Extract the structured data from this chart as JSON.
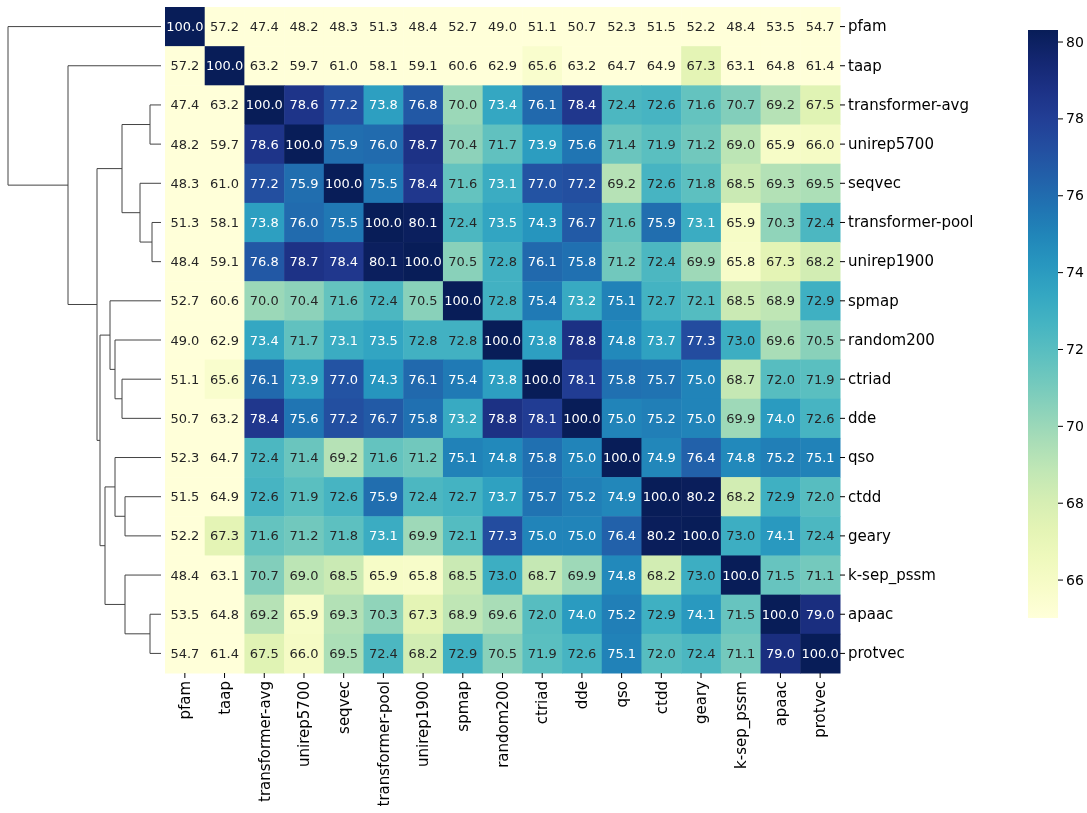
{
  "chart_data": {
    "type": "heatmap",
    "categories": [
      "pfam",
      "taap",
      "transformer-avg",
      "unirep5700",
      "seqvec",
      "transformer-pool",
      "unirep1900",
      "spmap",
      "random200",
      "ctriad",
      "dde",
      "qso",
      "ctdd",
      "geary",
      "k-sep_pssm",
      "apaac",
      "protvec"
    ],
    "y_categories": [
      "pfam",
      "taap",
      "transformer-avg",
      "unirep5700",
      "seqvec",
      "transformer-pool",
      "unirep1900",
      "spmap",
      "random200",
      "ctriad",
      "dde",
      "qso",
      "ctdd",
      "geary",
      "k-sep_pssm",
      "apaac",
      "protvec"
    ],
    "cells": [
      [
        100.0,
        57.2,
        47.4,
        48.2,
        48.3,
        51.3,
        48.4,
        52.7,
        49.0,
        51.1,
        50.7,
        52.3,
        51.5,
        52.2,
        48.4,
        53.5,
        54.7
      ],
      [
        57.2,
        100.0,
        63.2,
        59.7,
        61.0,
        58.1,
        59.1,
        60.6,
        62.9,
        65.6,
        63.2,
        64.7,
        64.9,
        67.3,
        63.1,
        64.8,
        61.4
      ],
      [
        47.4,
        63.2,
        100.0,
        78.6,
        77.2,
        73.8,
        76.8,
        70.0,
        73.4,
        76.1,
        78.4,
        72.4,
        72.6,
        71.6,
        70.7,
        69.2,
        67.5
      ],
      [
        48.2,
        59.7,
        78.6,
        100.0,
        75.9,
        76.0,
        78.7,
        70.4,
        71.7,
        73.9,
        75.6,
        71.4,
        71.9,
        71.2,
        69.0,
        65.9,
        66.0
      ],
      [
        48.3,
        61.0,
        77.2,
        75.9,
        100.0,
        75.5,
        78.4,
        71.6,
        73.1,
        77.0,
        77.2,
        69.2,
        72.6,
        71.8,
        68.5,
        69.3,
        69.5
      ],
      [
        51.3,
        58.1,
        73.8,
        76.0,
        75.5,
        100.0,
        80.1,
        72.4,
        73.5,
        74.3,
        76.7,
        71.6,
        75.9,
        73.1,
        65.9,
        70.3,
        72.4
      ],
      [
        48.4,
        59.1,
        76.8,
        78.7,
        78.4,
        80.1,
        100.0,
        70.5,
        72.8,
        76.1,
        75.8,
        71.2,
        72.4,
        69.9,
        65.8,
        67.3,
        68.2
      ],
      [
        52.7,
        60.6,
        70.0,
        70.4,
        71.6,
        72.4,
        70.5,
        100.0,
        72.8,
        75.4,
        73.2,
        75.1,
        72.7,
        72.1,
        68.5,
        68.9,
        72.9
      ],
      [
        49.0,
        62.9,
        73.4,
        71.7,
        73.1,
        73.5,
        72.8,
        72.8,
        100.0,
        73.8,
        78.8,
        74.8,
        73.7,
        77.3,
        73.0,
        69.6,
        70.5
      ],
      [
        51.1,
        65.6,
        76.1,
        73.9,
        77.0,
        74.3,
        76.1,
        75.4,
        73.8,
        100.0,
        78.1,
        75.8,
        75.7,
        75.0,
        68.7,
        72.0,
        71.9
      ],
      [
        50.7,
        63.2,
        78.4,
        75.6,
        77.2,
        76.7,
        75.8,
        73.2,
        78.8,
        78.1,
        100.0,
        75.0,
        75.2,
        75.0,
        69.9,
        74.0,
        72.6
      ],
      [
        52.3,
        64.7,
        72.4,
        71.4,
        69.2,
        71.6,
        71.2,
        75.1,
        74.8,
        75.8,
        75.0,
        100.0,
        74.9,
        76.4,
        74.8,
        75.2,
        75.1
      ],
      [
        51.5,
        64.9,
        72.6,
        71.9,
        72.6,
        75.9,
        72.4,
        72.7,
        73.7,
        75.7,
        75.2,
        74.9,
        100.0,
        80.2,
        68.2,
        72.9,
        72.0
      ],
      [
        52.2,
        67.3,
        71.6,
        71.2,
        71.8,
        73.1,
        69.9,
        72.1,
        77.3,
        75.0,
        75.0,
        76.4,
        80.2,
        100.0,
        73.0,
        74.1,
        72.4
      ],
      [
        48.4,
        63.1,
        70.7,
        69.0,
        68.5,
        65.9,
        65.8,
        68.5,
        73.0,
        68.7,
        69.9,
        74.8,
        68.2,
        73.0,
        100.0,
        71.5,
        71.1
      ],
      [
        53.5,
        64.8,
        69.2,
        65.9,
        69.3,
        70.3,
        67.3,
        68.9,
        69.6,
        72.0,
        74.0,
        75.2,
        72.9,
        74.1,
        71.5,
        100.0,
        79.0
      ],
      [
        54.7,
        61.4,
        67.5,
        66.0,
        69.5,
        72.4,
        68.2,
        72.9,
        70.5,
        71.9,
        72.6,
        75.1,
        72.0,
        72.4,
        71.1,
        79.0,
        100.0
      ]
    ],
    "cell_labels": [
      [
        "100.0",
        "57.2",
        "47.4",
        "48.2",
        "48.3",
        "51.3",
        "48.4",
        "52.7",
        "49.0",
        "51.1",
        "50.7",
        "52.3",
        "51.5",
        "52.2",
        "48.4",
        "53.5",
        "54.7"
      ],
      [
        "57.2",
        "100.0",
        "63.2",
        "59.7",
        "61.0",
        "58.1",
        "59.1",
        "60.6",
        "62.9",
        "65.6",
        "63.2",
        "64.7",
        "64.9",
        "67.3",
        "63.1",
        "64.8",
        "61.4"
      ],
      [
        "47.4",
        "63.2",
        "100.0",
        "78.6",
        "77.2",
        "73.8",
        "76.8",
        "70.0",
        "73.4",
        "76.1",
        "78.4",
        "72.4",
        "72.6",
        "71.6",
        "70.7",
        "69.2",
        "67.5"
      ],
      [
        "48.2",
        "59.7",
        "78.6",
        "100.0",
        "75.9",
        "76.0",
        "78.7",
        "70.4",
        "71.7",
        "73.9",
        "75.6",
        "71.4",
        "71.9",
        "71.2",
        "69.0",
        "65.9",
        "66.0"
      ],
      [
        "48.3",
        "61.0",
        "77.2",
        "75.9",
        "100.0",
        "75.5",
        "78.4",
        "71.6",
        "73.1",
        "77.0",
        "77.2",
        "69.2",
        "72.6",
        "71.8",
        "68.5",
        "69.3",
        "69.5"
      ],
      [
        "51.3",
        "58.1",
        "73.8",
        "76.0",
        "75.5",
        "100.0",
        "80.1",
        "72.4",
        "73.5",
        "74.3",
        "76.7",
        "71.6",
        "75.9",
        "73.1",
        "65.9",
        "70.3",
        "72.4"
      ],
      [
        "48.4",
        "59.1",
        "76.8",
        "78.7",
        "78.4",
        "80.1",
        "100.0",
        "70.5",
        "72.8",
        "76.1",
        "75.8",
        "71.2",
        "72.4",
        "69.9",
        "65.8",
        "67.3",
        "68.2"
      ],
      [
        "52.7",
        "60.6",
        "70.0",
        "70.4",
        "71.6",
        "72.4",
        "70.5",
        "100.0",
        "72.8",
        "75.4",
        "73.2",
        "75.1",
        "72.7",
        "72.1",
        "68.5",
        "68.9",
        "72.9"
      ],
      [
        "49.0",
        "62.9",
        "73.4",
        "71.7",
        "73.1",
        "73.5",
        "72.8",
        "72.8",
        "100.0",
        "73.8",
        "78.8",
        "74.8",
        "73.7",
        "77.3",
        "73.0",
        "69.6",
        "70.5"
      ],
      [
        "51.1",
        "65.6",
        "76.1",
        "73.9",
        "77.0",
        "74.3",
        "76.1",
        "75.4",
        "73.8",
        "100.0",
        "78.1",
        "75.8",
        "75.7",
        "75.0",
        "68.7",
        "72.0",
        "71.9"
      ],
      [
        "50.7",
        "63.2",
        "78.4",
        "75.6",
        "77.2",
        "76.7",
        "75.8",
        "73.2",
        "78.8",
        "78.1",
        "100.0",
        "75.0",
        "75.2",
        "75.0",
        "69.9",
        "74.0",
        "72.6"
      ],
      [
        "52.3",
        "64.7",
        "72.4",
        "71.4",
        "69.2",
        "71.6",
        "71.2",
        "75.1",
        "74.8",
        "75.8",
        "75.0",
        "100.0",
        "74.9",
        "76.4",
        "74.8",
        "75.2",
        "75.1"
      ],
      [
        "51.5",
        "64.9",
        "72.6",
        "71.9",
        "72.6",
        "75.9",
        "72.4",
        "72.7",
        "73.7",
        "75.7",
        "75.2",
        "74.9",
        "100.0",
        "80.2",
        "68.2",
        "72.9",
        "72.0"
      ],
      [
        "52.2",
        "67.3",
        "71.6",
        "71.2",
        "71.8",
        "73.1",
        "69.9",
        "72.1",
        "77.3",
        "75.0",
        "75.0",
        "76.4",
        "80.2",
        "100.0",
        "73.0",
        "74.1",
        "72.4"
      ],
      [
        "48.4",
        "63.1",
        "70.7",
        "69.0",
        "68.5",
        "65.9",
        "65.8",
        "68.5",
        "73.0",
        "68.7",
        "69.9",
        "74.8",
        "68.2",
        "73.0",
        "100.0",
        "71.5",
        "71.1"
      ],
      [
        "53.5",
        "64.8",
        "69.2",
        "65.9",
        "69.3",
        "70.3",
        "67.3",
        "68.9",
        "69.6",
        "72.0",
        "74.0",
        "75.2",
        "72.9",
        "74.1",
        "71.5",
        "100.0",
        "79.0"
      ],
      [
        "54.7",
        "61.4",
        "67.5",
        "66.0",
        "69.5",
        "72.4",
        "68.2",
        "72.9",
        "70.5",
        "71.9",
        "72.6",
        "75.1",
        "72.0",
        "72.4",
        "71.1",
        "79.0",
        "100.0"
      ]
    ],
    "clim": [
      65,
      80.3
    ],
    "cticks": [
      66,
      68,
      70,
      72,
      74,
      76,
      78,
      80
    ]
  }
}
